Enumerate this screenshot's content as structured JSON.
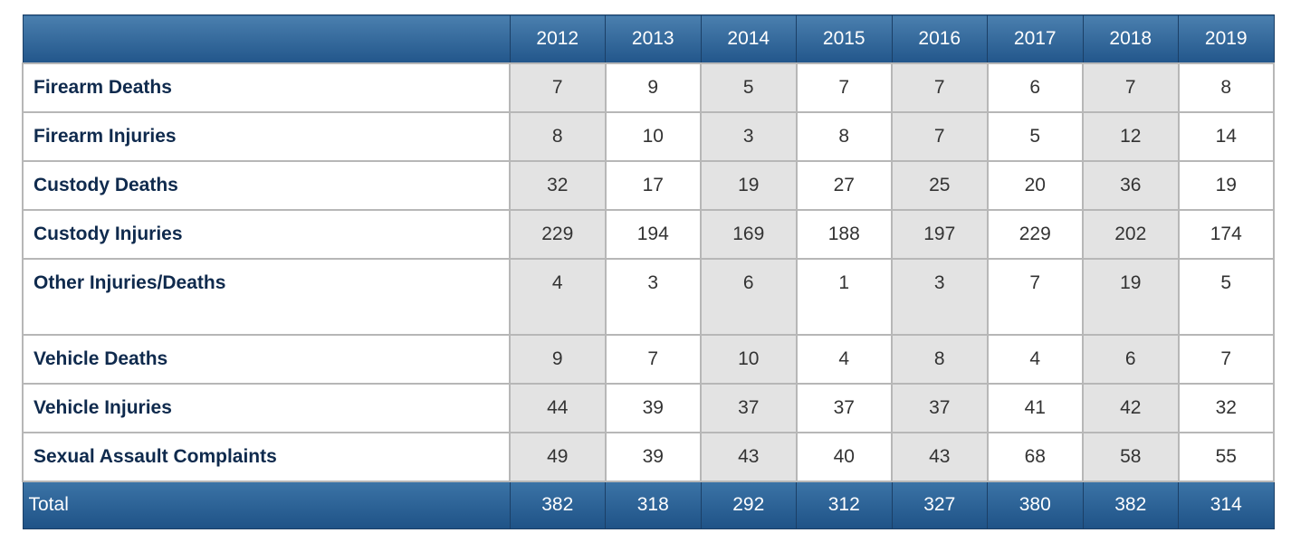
{
  "chart_data": {
    "type": "table",
    "columns": [
      "",
      "2012",
      "2013",
      "2014",
      "2015",
      "2016",
      "2017",
      "2018",
      "2019"
    ],
    "rows": [
      {
        "label": "Firearm Deaths",
        "values": [
          7,
          9,
          5,
          7,
          7,
          6,
          7,
          8
        ]
      },
      {
        "label": "Firearm Injuries",
        "values": [
          8,
          10,
          3,
          8,
          7,
          5,
          12,
          14
        ]
      },
      {
        "label": "Custody Deaths",
        "values": [
          32,
          17,
          19,
          27,
          25,
          20,
          36,
          19
        ]
      },
      {
        "label": "Custody Injuries",
        "values": [
          229,
          194,
          169,
          188,
          197,
          229,
          202,
          174
        ]
      },
      {
        "label": "Other Injuries/Deaths",
        "values": [
          4,
          3,
          6,
          1,
          3,
          7,
          19,
          5
        ]
      },
      {
        "label": "Vehicle Deaths",
        "values": [
          9,
          7,
          10,
          4,
          8,
          4,
          6,
          7
        ]
      },
      {
        "label": "Vehicle Injuries",
        "values": [
          44,
          39,
          37,
          37,
          37,
          41,
          42,
          32
        ]
      },
      {
        "label": "Sexual Assault Complaints",
        "values": [
          49,
          39,
          43,
          40,
          43,
          68,
          58,
          55
        ]
      }
    ],
    "total": {
      "label": "Total",
      "values": [
        382,
        318,
        292,
        312,
        327,
        380,
        382,
        314
      ]
    }
  },
  "colors": {
    "header_bg": "#2f6599",
    "row_label_text": "#0f2a4d",
    "shaded_cell": "#e3e3e3",
    "grid": "#b7b7b7"
  }
}
